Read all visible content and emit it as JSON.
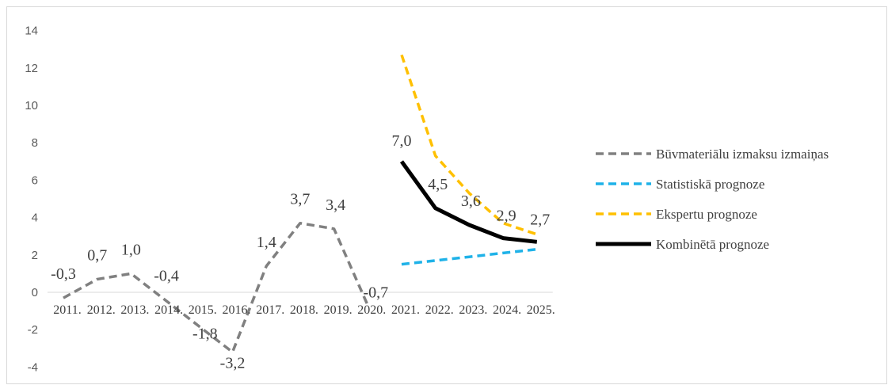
{
  "chart_data": {
    "type": "line",
    "categories": [
      "2011.",
      "2012.",
      "2013.",
      "2014.",
      "2015.",
      "2016.",
      "2017.",
      "2018.",
      "2019.",
      "2020.",
      "2021.",
      "2022.",
      "2023.",
      "2024.",
      "2025."
    ],
    "ylim": [
      -4,
      14
    ],
    "yticks": [
      -4,
      -2,
      0,
      2,
      4,
      6,
      8,
      10,
      12,
      14
    ],
    "ytick_labels": [
      "-4",
      "-2",
      "0",
      "2",
      "4",
      "6",
      "8",
      "10",
      "12",
      "14"
    ],
    "grid": false,
    "legend_position": "right",
    "series": [
      {
        "name": "Būvmateriālu izmaksu izmaiņas",
        "color": "#808080",
        "dash": "dashed",
        "values": [
          -0.3,
          0.7,
          1.0,
          -0.4,
          -1.8,
          -3.2,
          1.4,
          3.7,
          3.4,
          -0.7,
          null,
          null,
          null,
          null,
          null
        ],
        "labels": [
          "-0,3",
          "0,7",
          "1,0",
          "-0,4",
          "-1,8",
          "-3,2",
          "1,4",
          "3,7",
          "3,4",
          "-0,7",
          null,
          null,
          null,
          null,
          null
        ]
      },
      {
        "name": "Statistiskā prognoze",
        "color": "#1fb2e8",
        "dash": "dashed",
        "values": [
          null,
          null,
          null,
          null,
          null,
          null,
          null,
          null,
          null,
          null,
          1.5,
          1.7,
          1.9,
          2.1,
          2.3
        ]
      },
      {
        "name": "Ekspertu prognoze",
        "color": "#ffc000",
        "dash": "dashed",
        "values": [
          null,
          null,
          null,
          null,
          null,
          null,
          null,
          null,
          null,
          null,
          12.7,
          7.3,
          5.3,
          3.7,
          3.1
        ]
      },
      {
        "name": "Kombinētā prognoze",
        "color": "#000000",
        "dash": "solid",
        "values": [
          null,
          null,
          null,
          null,
          null,
          null,
          null,
          null,
          null,
          null,
          7.0,
          4.5,
          3.6,
          2.9,
          2.7
        ],
        "labels": [
          null,
          null,
          null,
          null,
          null,
          null,
          null,
          null,
          null,
          null,
          "7,0",
          "4,5",
          "3,6",
          "2,9",
          "2,7"
        ]
      }
    ]
  }
}
